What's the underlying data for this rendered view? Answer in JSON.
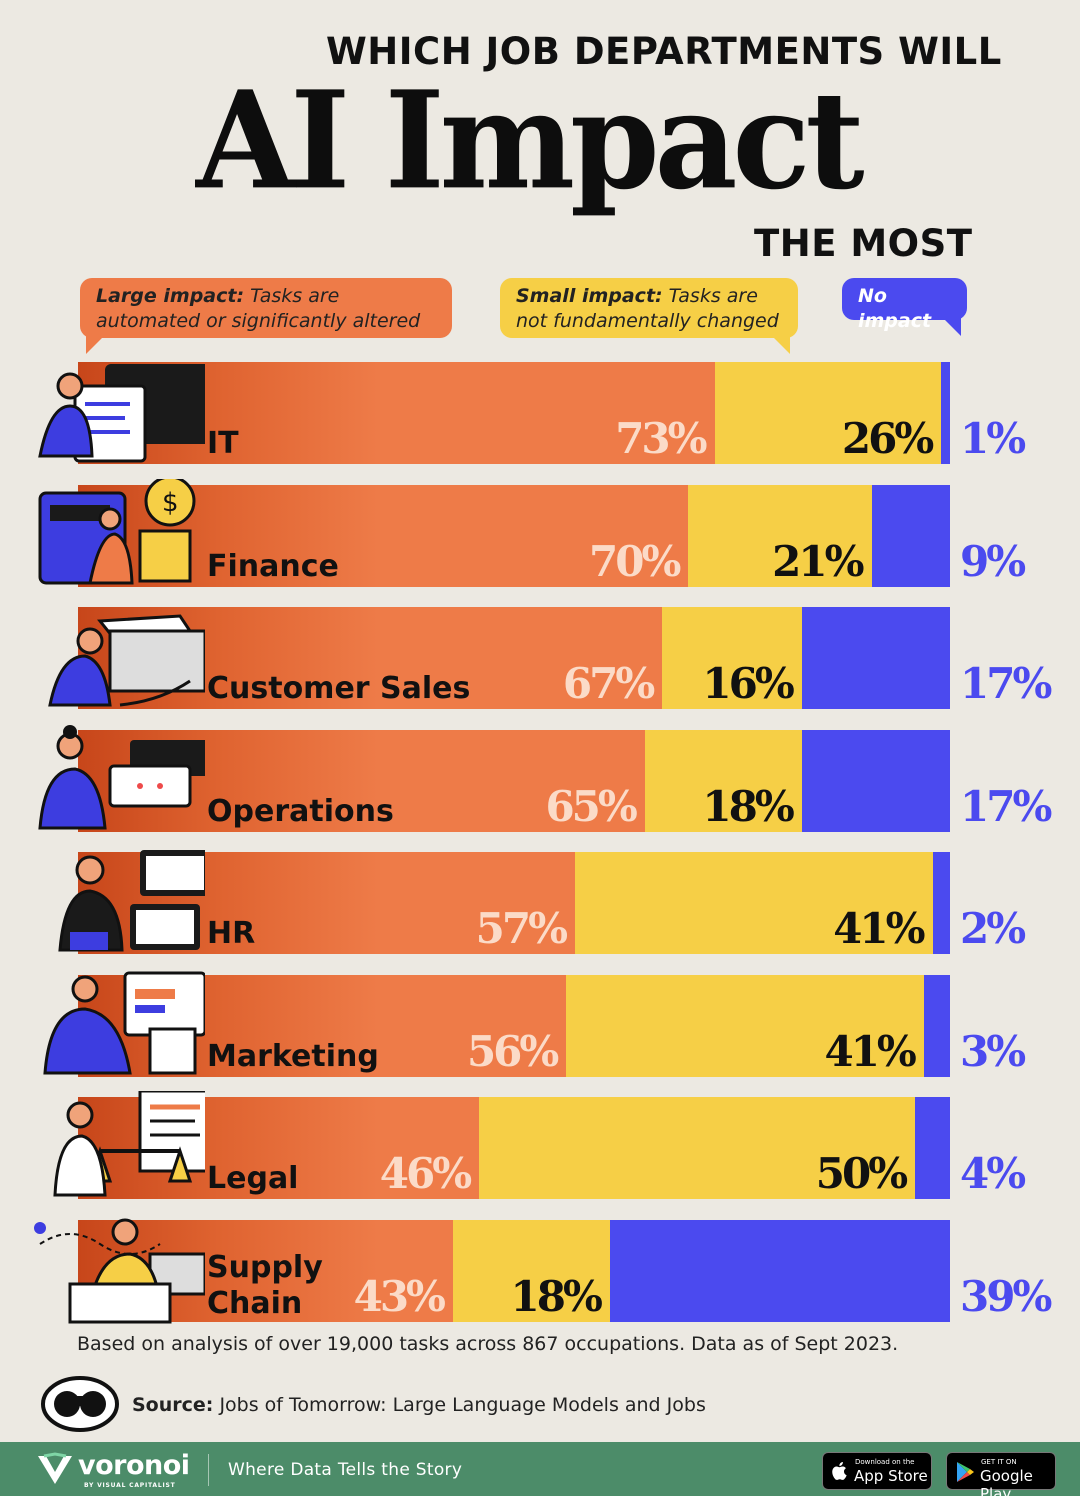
{
  "title": {
    "top": "WHICH JOB DEPARTMENTS WILL",
    "main": "AI Impact",
    "bottom": "THE MOST"
  },
  "legend": {
    "large": {
      "bold": "Large impact:",
      "text": "Tasks are automated or significantly altered"
    },
    "small": {
      "bold": "Small impact:",
      "text": "Tasks are not fundamentally changed"
    },
    "none": {
      "bold": "No impact"
    }
  },
  "colors": {
    "large": "#ee7b48",
    "small": "#f6cf46",
    "none": "#4b4aef",
    "background": "#ece9e2",
    "footer": "#4c8c69"
  },
  "chart_data": {
    "type": "bar",
    "orientation": "horizontal",
    "stacked": true,
    "categories": [
      "IT",
      "Finance",
      "Customer Sales",
      "Operations",
      "HR",
      "Marketing",
      "Legal",
      "Supply Chain"
    ],
    "series": [
      {
        "name": "Large impact",
        "values": [
          73,
          70,
          67,
          65,
          57,
          56,
          46,
          43
        ],
        "labels": [
          "73%",
          "70%",
          "67%",
          "65%",
          "57%",
          "56%",
          "46%",
          "43%"
        ]
      },
      {
        "name": "Small impact",
        "values": [
          26,
          21,
          16,
          18,
          41,
          41,
          50,
          18
        ],
        "labels": [
          "26%",
          "21%",
          "16%",
          "18%",
          "41%",
          "41%",
          "50%",
          "18%"
        ]
      },
      {
        "name": "No impact",
        "values": [
          1,
          9,
          17,
          17,
          2,
          3,
          4,
          39
        ],
        "labels": [
          "1%",
          "9%",
          "17%",
          "17%",
          "2%",
          "3%",
          "4%",
          "39%"
        ]
      }
    ],
    "unit": "%",
    "xlim": [
      0,
      100
    ],
    "grid": false,
    "legend": "top"
  },
  "note": "Based on analysis of over 19,000 tasks across 867 occupations. Data as of Sept 2023.",
  "source": {
    "label": "Source:",
    "text": "Jobs of Tomorrow: Large Language Models and Jobs"
  },
  "footer": {
    "brand": "voronoi",
    "brand_sub": "BY VISUAL CAPITALIST",
    "tagline": "Where Data Tells the Story",
    "app_store_small": "Download on the",
    "app_store_big": "App Store",
    "google_play_small": "GET IT ON",
    "google_play_big": "Google Play"
  }
}
